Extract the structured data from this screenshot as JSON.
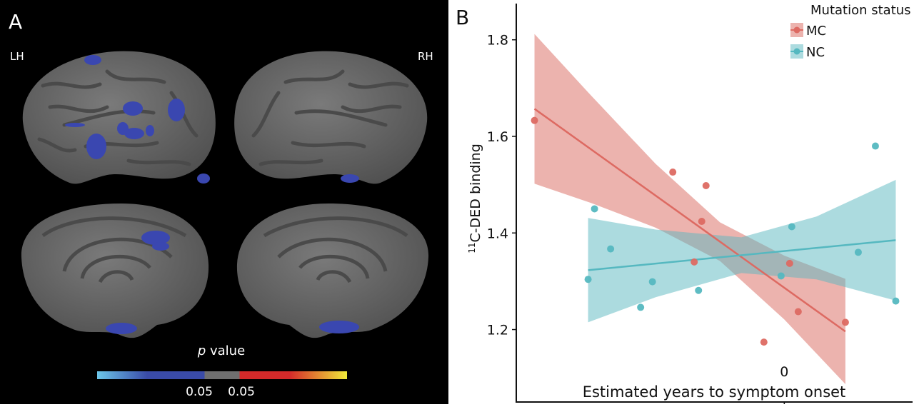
{
  "panel_a": {
    "label": "A",
    "left_hemisphere": "LH",
    "right_hemisphere": "RH",
    "colorbar": {
      "title_italic": "p",
      "title_rest": " value",
      "left_threshold": "0.05",
      "right_threshold": "0.05",
      "colors": [
        "#6cc6e8",
        "#3a4ba8",
        "#6f6f6f",
        "#d42a2a",
        "#f0ea3a"
      ]
    },
    "colors": {
      "cortex": "#6e6e6e",
      "sulci": "#515151",
      "cluster": "#3a47b0",
      "background": "#000000"
    }
  },
  "chart_data": {
    "type": "scatter",
    "panel_label": "B",
    "xlabel": "Estimated years to symptom onset",
    "ylabel_superscript": "11",
    "ylabel": "C-DED binding",
    "xlim": [
      -25,
      11.5
    ],
    "ylim": [
      1.05,
      1.875
    ],
    "x_ticks": [
      {
        "value": 0,
        "label": "0"
      }
    ],
    "y_ticks": [
      {
        "value": 1.2,
        "label": "1.2"
      },
      {
        "value": 1.4,
        "label": "1.4"
      },
      {
        "value": 1.6,
        "label": "1.6"
      },
      {
        "value": 1.8,
        "label": "1.8"
      }
    ],
    "grid": false,
    "legend": {
      "title": "Mutation status",
      "placement": "top-right"
    },
    "series": [
      {
        "name": "MC",
        "color": "#dd6a62",
        "ribbon_color": "#d9685d",
        "points": [
          [
            -23.3,
            1.633
          ],
          [
            -10.4,
            1.526
          ],
          [
            -7.3,
            1.498
          ],
          [
            -7.7,
            1.424
          ],
          [
            -8.4,
            1.34
          ],
          [
            0.5,
            1.337
          ],
          [
            1.3,
            1.237
          ],
          [
            -1.9,
            1.174
          ],
          [
            5.7,
            1.215
          ]
        ],
        "fit": [
          [
            -23.3,
            1.657
          ],
          [
            5.7,
            1.196
          ]
        ],
        "ribbon": [
          [
            -23.3,
            1.502,
            1.812
          ],
          [
            -18,
            1.462,
            1.684
          ],
          [
            -12,
            1.411,
            1.543
          ],
          [
            -6,
            1.342,
            1.422
          ],
          [
            0,
            1.221,
            1.353
          ],
          [
            5.7,
            1.087,
            1.305
          ]
        ]
      },
      {
        "name": "NC",
        "color": "#55b8c0",
        "ribbon_color": "#5ab8bf",
        "points": [
          [
            -17.7,
            1.45
          ],
          [
            -16.2,
            1.367
          ],
          [
            -18.3,
            1.304
          ],
          [
            -12.3,
            1.299
          ],
          [
            -13.4,
            1.246
          ],
          [
            -8.0,
            1.281
          ],
          [
            -0.3,
            1.311
          ],
          [
            0.7,
            1.413
          ],
          [
            6.9,
            1.36
          ],
          [
            8.5,
            1.58
          ],
          [
            10.4,
            1.259
          ]
        ],
        "fit": [
          [
            -18.3,
            1.323
          ],
          [
            10.4,
            1.385
          ]
        ],
        "ribbon": [
          [
            -18.3,
            1.215,
            1.431
          ],
          [
            -12,
            1.267,
            1.407
          ],
          [
            -4,
            1.317,
            1.391
          ],
          [
            3,
            1.304,
            1.434
          ],
          [
            10.4,
            1.26,
            1.51
          ]
        ]
      }
    ]
  }
}
